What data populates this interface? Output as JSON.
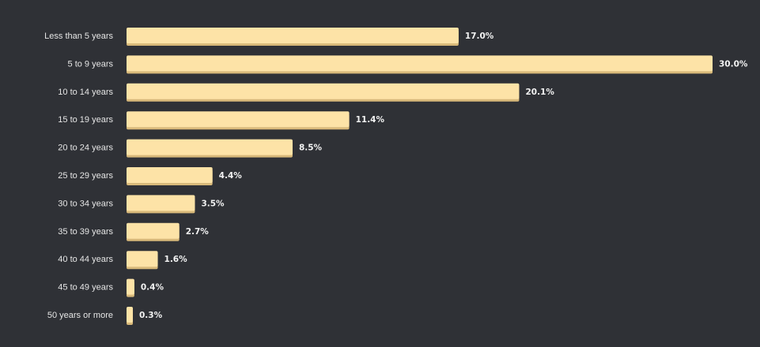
{
  "colors": {
    "background": "#2f3136",
    "bar": "#fde3a7",
    "bar_shadow": "#d8b97a",
    "label_text": "#e6e6e6",
    "value_text": "#f2f2f2"
  },
  "chart_data": {
    "type": "bar",
    "orientation": "horizontal",
    "title": "",
    "xlabel": "",
    "ylabel": "",
    "xlim": [
      0,
      30
    ],
    "grid": false,
    "legend": "none",
    "categories": [
      "Less than 5 years",
      "5 to 9 years",
      "10 to 14 years",
      "15 to 19 years",
      "20 to 24 years",
      "25 to 29 years",
      "30 to 34 years",
      "35 to 39 years",
      "40 to 44 years",
      "45 to 49 years",
      "50 years or more"
    ],
    "values": [
      17.0,
      30.0,
      20.1,
      11.4,
      8.5,
      4.4,
      3.5,
      2.7,
      1.6,
      0.4,
      0.3
    ],
    "value_labels": [
      "17.0%",
      "30.0%",
      "20.1%",
      "11.4%",
      "8.5%",
      "4.4%",
      "3.5%",
      "2.7%",
      "1.6%",
      "0.4%",
      "0.3%"
    ]
  }
}
